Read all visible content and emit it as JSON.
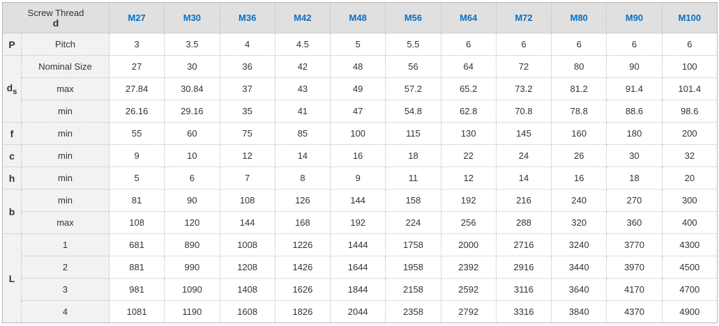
{
  "header": {
    "label": "Screw Thread",
    "symbol": "d",
    "sizes": [
      "M27",
      "M30",
      "M36",
      "M42",
      "M48",
      "M56",
      "M64",
      "M72",
      "M80",
      "M90",
      "M100"
    ]
  },
  "colors": {
    "header_text": "#0a6ec2",
    "header_bg": "#e0e0e0",
    "label_bg": "#f2f2f2"
  },
  "groups": [
    {
      "symbol": "P",
      "sub": "",
      "rows": [
        {
          "label": "Pitch",
          "values": [
            "3",
            "3.5",
            "4",
            "4.5",
            "5",
            "5.5",
            "6",
            "6",
            "6",
            "6",
            "6"
          ]
        }
      ]
    },
    {
      "symbol": "d",
      "sub": "s",
      "rows": [
        {
          "label": "Nominal Size",
          "values": [
            "27",
            "30",
            "36",
            "42",
            "48",
            "56",
            "64",
            "72",
            "80",
            "90",
            "100"
          ]
        },
        {
          "label": "max",
          "values": [
            "27.84",
            "30.84",
            "37",
            "43",
            "49",
            "57.2",
            "65.2",
            "73.2",
            "81.2",
            "91.4",
            "101.4"
          ]
        },
        {
          "label": "min",
          "values": [
            "26.16",
            "29.16",
            "35",
            "41",
            "47",
            "54.8",
            "62.8",
            "70.8",
            "78.8",
            "88.6",
            "98.6"
          ]
        }
      ]
    },
    {
      "symbol": "f",
      "sub": "",
      "rows": [
        {
          "label": "min",
          "values": [
            "55",
            "60",
            "75",
            "85",
            "100",
            "115",
            "130",
            "145",
            "160",
            "180",
            "200"
          ]
        }
      ]
    },
    {
      "symbol": "c",
      "sub": "",
      "rows": [
        {
          "label": "min",
          "values": [
            "9",
            "10",
            "12",
            "14",
            "16",
            "18",
            "22",
            "24",
            "26",
            "30",
            "32"
          ]
        }
      ]
    },
    {
      "symbol": "h",
      "sub": "",
      "rows": [
        {
          "label": "min",
          "values": [
            "5",
            "6",
            "7",
            "8",
            "9",
            "11",
            "12",
            "14",
            "16",
            "18",
            "20"
          ]
        }
      ]
    },
    {
      "symbol": "b",
      "sub": "",
      "rows": [
        {
          "label": "min",
          "values": [
            "81",
            "90",
            "108",
            "126",
            "144",
            "158",
            "192",
            "216",
            "240",
            "270",
            "300"
          ]
        },
        {
          "label": "max",
          "values": [
            "108",
            "120",
            "144",
            "168",
            "192",
            "224",
            "256",
            "288",
            "320",
            "360",
            "400"
          ]
        }
      ]
    },
    {
      "symbol": "L",
      "sub": "",
      "rows": [
        {
          "label": "1",
          "values": [
            "681",
            "890",
            "1008",
            "1226",
            "1444",
            "1758",
            "2000",
            "2716",
            "3240",
            "3770",
            "4300"
          ]
        },
        {
          "label": "2",
          "values": [
            "881",
            "990",
            "1208",
            "1426",
            "1644",
            "1958",
            "2392",
            "2916",
            "3440",
            "3970",
            "4500"
          ]
        },
        {
          "label": "3",
          "values": [
            "981",
            "1090",
            "1408",
            "1626",
            "1844",
            "2158",
            "2592",
            "3116",
            "3640",
            "4170",
            "4700"
          ]
        },
        {
          "label": "4",
          "values": [
            "1081",
            "1190",
            "1608",
            "1826",
            "2044",
            "2358",
            "2792",
            "3316",
            "3840",
            "4370",
            "4900"
          ]
        }
      ]
    }
  ]
}
